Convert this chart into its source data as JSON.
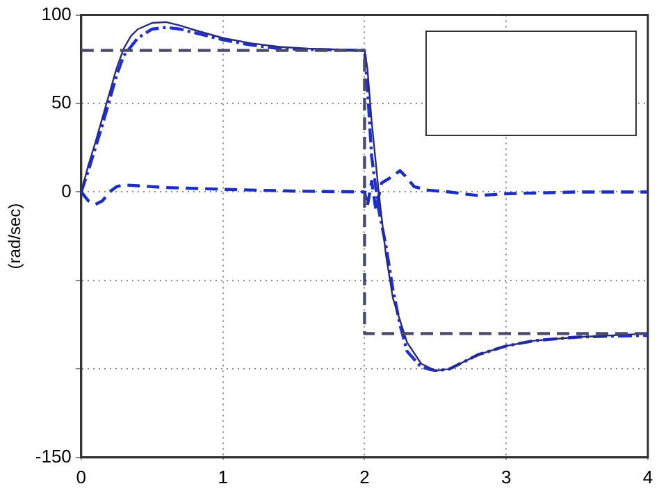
{
  "chart_data": {
    "type": "line",
    "ylabel": "(rad/sec)",
    "xlim": [
      0,
      4
    ],
    "xticks": [
      0,
      1,
      2,
      3,
      4
    ],
    "ylim": [
      -150,
      100
    ],
    "yticks": [
      -150,
      {
        "value": -100,
        "label": null
      },
      {
        "value": -50,
        "label": null
      },
      0,
      50,
      100
    ],
    "grid": true,
    "marker": "none",
    "series": [
      {
        "color": "#4a4a6a",
        "line_style": "dashed",
        "x": [
          0,
          2,
          2,
          4
        ],
        "values": [
          80,
          80,
          -80,
          -80
        ]
      },
      {
        "color": "#2a2a7a",
        "line_style": "solid",
        "x": [
          0,
          0.05,
          0.1,
          0.15,
          0.2,
          0.25,
          0.3,
          0.35,
          0.4,
          0.5,
          0.6,
          0.7,
          0.8,
          1.0,
          1.2,
          1.4,
          1.6,
          1.8,
          2.0,
          2.02,
          2.05,
          2.1,
          2.15,
          2.2,
          2.3,
          2.4,
          2.5,
          2.6,
          2.7,
          2.8,
          3.0,
          3.2,
          3.5,
          4
        ],
        "values": [
          0,
          15,
          28,
          42,
          56,
          70,
          81,
          88,
          92,
          95.5,
          96,
          94,
          91.5,
          87,
          84,
          82,
          81,
          80.5,
          80,
          70,
          40,
          0,
          -35,
          -60,
          -85,
          -97,
          -101,
          -100,
          -96,
          -92,
          -87,
          -84,
          -82,
          -80
        ]
      },
      {
        "color": "#1f2fd0",
        "line_style": "dashdot",
        "x": [
          0,
          0.05,
          0.1,
          0.15,
          0.2,
          0.25,
          0.3,
          0.4,
          0.5,
          0.6,
          0.7,
          0.8,
          1.0,
          1.2,
          1.4,
          1.6,
          2.0,
          2.02,
          2.05,
          2.1,
          2.15,
          2.2,
          2.25,
          2.3,
          2.4,
          2.5,
          2.6,
          2.7,
          2.8,
          3.0,
          3.2,
          3.5,
          4
        ],
        "values": [
          0,
          12,
          25,
          38,
          52,
          66,
          77,
          87,
          92,
          93,
          92,
          90,
          86,
          83,
          81,
          80.5,
          80,
          60,
          20,
          -10,
          -30,
          -55,
          -75,
          -90,
          -99,
          -101,
          -100,
          -96,
          -92,
          -87,
          -84,
          -82,
          -81
        ]
      },
      {
        "color": "#1a2fc0",
        "line_style": "dashed",
        "x": [
          0,
          0.05,
          0.1,
          0.15,
          0.2,
          0.25,
          0.3,
          0.4,
          0.6,
          1.0,
          1.5,
          2.0,
          2.02,
          2.05,
          2.08,
          2.12,
          2.18,
          2.25,
          2.3,
          2.35,
          2.45,
          2.6,
          2.8,
          3.0,
          3.5,
          4
        ],
        "values": [
          0,
          -5,
          -7,
          -5,
          0,
          3,
          4,
          3.5,
          2.5,
          1.5,
          0.5,
          0,
          -8,
          6,
          -10,
          5,
          8,
          12,
          8,
          3,
          1,
          0,
          -2,
          -1,
          0,
          0
        ]
      }
    ]
  }
}
